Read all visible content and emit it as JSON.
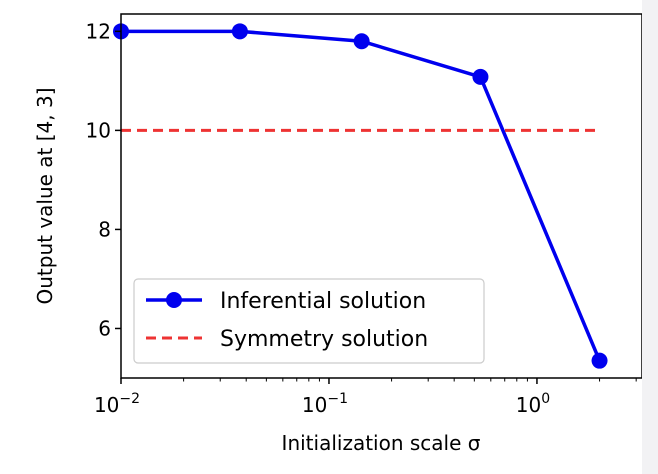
{
  "chart_data": {
    "type": "line",
    "xscale": "log",
    "xlabel": "Initialization scale σ",
    "ylabel": "Output value at [4, 3]",
    "xlim": [
      0.01,
      3.2
    ],
    "ylim": [
      5.0,
      12.35
    ],
    "xticks": [
      {
        "value": 0.01,
        "base": "10",
        "exp": "−2"
      },
      {
        "value": 0.1,
        "base": "10",
        "exp": "−1"
      },
      {
        "value": 1,
        "base": "10",
        "exp": "0"
      }
    ],
    "yticks": [
      {
        "value": 6,
        "label": "6"
      },
      {
        "value": 8,
        "label": "8"
      },
      {
        "value": 10,
        "label": "10"
      },
      {
        "value": 12,
        "label": "12"
      }
    ],
    "grid": false,
    "legend_position": "lower-left",
    "series": [
      {
        "name": "Inferential solution",
        "style": "solid-line-markers",
        "color": "#0000ee",
        "x": [
          0.01,
          0.0373,
          0.1436,
          0.535,
          2.0
        ],
        "y": [
          12.0,
          12.0,
          11.8,
          11.08,
          5.35
        ]
      },
      {
        "name": "Symmetry solution",
        "style": "dashed",
        "color": "#ee3333",
        "x": [
          0.01,
          2.0
        ],
        "y": [
          10.0,
          10.0
        ]
      }
    ]
  }
}
